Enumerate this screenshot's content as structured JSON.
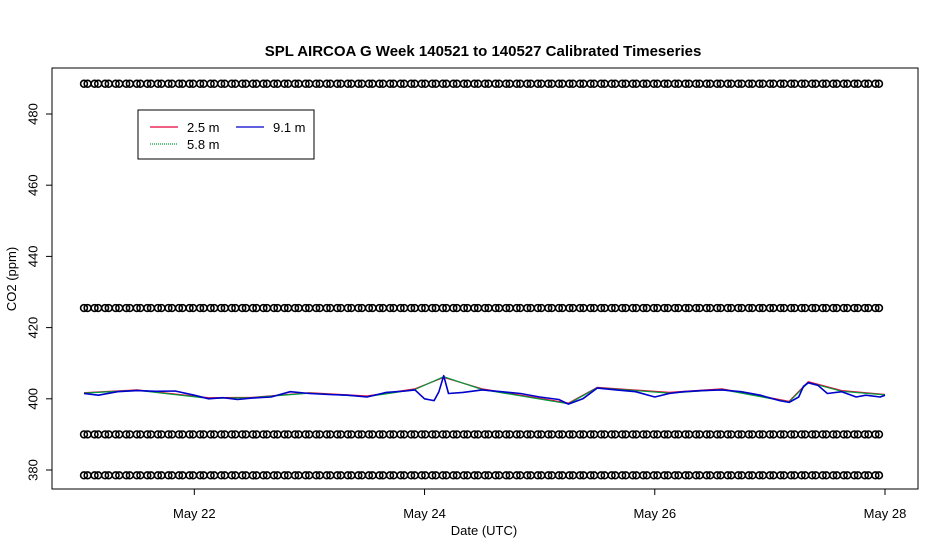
{
  "chart_data": {
    "type": "line",
    "title": "SPL AIRCOA G  Week 140521 to 140527  Calibrated Timeseries",
    "xlabel": "Date (UTC)",
    "ylabel": "CO2 (ppm)",
    "x_range": [
      "2014-05-21T01:00",
      "2014-05-28T00:00"
    ],
    "ylim": [
      375,
      490
    ],
    "x_ticks": [
      {
        "date": "2014-05-22",
        "label": "May 22"
      },
      {
        "date": "2014-05-24",
        "label": "May 24"
      },
      {
        "date": "2014-05-26",
        "label": "May 26"
      },
      {
        "date": "2014-05-28",
        "label": "May 28"
      }
    ],
    "y_ticks": [
      380,
      400,
      420,
      440,
      460,
      480
    ],
    "legend": {
      "placement": "top-left",
      "entries": [
        {
          "label": "2.5 m",
          "color": "#e8003c"
        },
        {
          "label": "5.8 m",
          "color": "#009a3a"
        },
        {
          "label": "9.1 m",
          "color": "#0000cc"
        }
      ]
    },
    "series": [
      {
        "name": "9.1 m",
        "color": "#0000cc",
        "points": [
          [
            "2014-05-21T01:00",
            401.5
          ],
          [
            "2014-05-21T04:00",
            401.0
          ],
          [
            "2014-05-21T08:00",
            402.0
          ],
          [
            "2014-05-21T12:00",
            402.3
          ],
          [
            "2014-05-21T16:00",
            402.1
          ],
          [
            "2014-05-21T20:00",
            402.2
          ],
          [
            "2014-05-22T00:00",
            401.0
          ],
          [
            "2014-05-22T03:00",
            400.0
          ],
          [
            "2014-05-22T06:00",
            400.3
          ],
          [
            "2014-05-22T09:00",
            399.8
          ],
          [
            "2014-05-22T12:00",
            400.2
          ],
          [
            "2014-05-22T16:00",
            400.5
          ],
          [
            "2014-05-22T20:00",
            402.0
          ],
          [
            "2014-05-23T00:00",
            401.5
          ],
          [
            "2014-05-23T04:00",
            401.2
          ],
          [
            "2014-05-23T08:00",
            401.0
          ],
          [
            "2014-05-23T12:00",
            400.5
          ],
          [
            "2014-05-23T16:00",
            401.8
          ],
          [
            "2014-05-23T20:00",
            402.2
          ],
          [
            "2014-05-23T22:00",
            402.5
          ],
          [
            "2014-05-24T00:00",
            400.0
          ],
          [
            "2014-05-24T02:00",
            399.5
          ],
          [
            "2014-05-24T03:00",
            402.0
          ],
          [
            "2014-05-24T04:00",
            406.5
          ],
          [
            "2014-05-24T05:00",
            401.5
          ],
          [
            "2014-05-24T08:00",
            401.8
          ],
          [
            "2014-05-24T12:00",
            402.5
          ],
          [
            "2014-05-24T16:00",
            402.0
          ],
          [
            "2014-05-24T20:00",
            401.5
          ],
          [
            "2014-05-25T00:00",
            400.5
          ],
          [
            "2014-05-25T04:00",
            399.8
          ],
          [
            "2014-05-25T06:00",
            398.5
          ],
          [
            "2014-05-25T09:00",
            400.0
          ],
          [
            "2014-05-25T12:00",
            403.0
          ],
          [
            "2014-05-25T16:00",
            402.5
          ],
          [
            "2014-05-25T20:00",
            402.0
          ],
          [
            "2014-05-26T00:00",
            400.5
          ],
          [
            "2014-05-26T03:00",
            401.5
          ],
          [
            "2014-05-26T06:00",
            402.0
          ],
          [
            "2014-05-26T10:00",
            402.3
          ],
          [
            "2014-05-26T14:00",
            402.5
          ],
          [
            "2014-05-26T18:00",
            402.0
          ],
          [
            "2014-05-26T22:00",
            401.0
          ],
          [
            "2014-05-27T02:00",
            399.5
          ],
          [
            "2014-05-27T04:00",
            399.0
          ],
          [
            "2014-05-27T06:00",
            400.5
          ],
          [
            "2014-05-27T07:00",
            403.5
          ],
          [
            "2014-05-27T08:00",
            404.5
          ],
          [
            "2014-05-27T10:00",
            403.8
          ],
          [
            "2014-05-27T12:00",
            401.5
          ],
          [
            "2014-05-27T15:00",
            402.0
          ],
          [
            "2014-05-27T18:00",
            400.5
          ],
          [
            "2014-05-27T20:00",
            401.0
          ],
          [
            "2014-05-27T23:00",
            400.5
          ],
          [
            "2014-05-28T00:00",
            401.0
          ]
        ]
      },
      {
        "name": "2.5 m",
        "color": "#e8003c",
        "points": [
          [
            "2014-05-21T01:00",
            401.7
          ],
          [
            "2014-05-21T12:00",
            402.5
          ],
          [
            "2014-05-22T03:00",
            400.3
          ],
          [
            "2014-05-22T12:00",
            400.4
          ],
          [
            "2014-05-23T00:00",
            401.7
          ],
          [
            "2014-05-23T12:00",
            400.8
          ],
          [
            "2014-05-23T22:00",
            402.8
          ],
          [
            "2014-05-24T04:00",
            406.0
          ],
          [
            "2014-05-24T12:00",
            402.8
          ],
          [
            "2014-05-25T06:00",
            398.8
          ],
          [
            "2014-05-25T12:00",
            403.2
          ],
          [
            "2014-05-26T03:00",
            401.8
          ],
          [
            "2014-05-26T14:00",
            402.8
          ],
          [
            "2014-05-27T04:00",
            399.3
          ],
          [
            "2014-05-27T08:00",
            404.8
          ],
          [
            "2014-05-27T15:00",
            402.3
          ],
          [
            "2014-05-28T00:00",
            401.2
          ]
        ]
      },
      {
        "name": "5.8 m",
        "color": "#009a3a",
        "points": [
          [
            "2014-05-21T01:00",
            401.6
          ],
          [
            "2014-05-21T12:00",
            402.4
          ],
          [
            "2014-05-22T03:00",
            400.1
          ],
          [
            "2014-05-22T12:00",
            400.3
          ],
          [
            "2014-05-23T00:00",
            401.6
          ],
          [
            "2014-05-23T12:00",
            400.6
          ],
          [
            "2014-05-23T22:00",
            402.6
          ],
          [
            "2014-05-24T04:00",
            406.2
          ],
          [
            "2014-05-24T12:00",
            402.6
          ],
          [
            "2014-05-25T06:00",
            398.6
          ],
          [
            "2014-05-25T12:00",
            403.1
          ],
          [
            "2014-05-26T03:00",
            401.6
          ],
          [
            "2014-05-26T14:00",
            402.6
          ],
          [
            "2014-05-27T04:00",
            399.1
          ],
          [
            "2014-05-27T08:00",
            404.6
          ],
          [
            "2014-05-27T15:00",
            402.1
          ],
          [
            "2014-05-28T00:00",
            401.1
          ]
        ]
      }
    ],
    "marker_rows": [
      {
        "name": "marker-row",
        "y": 488.5
      },
      {
        "name": "marker-row",
        "y": 425.5
      },
      {
        "name": "marker-row",
        "y": 390.0
      },
      {
        "name": "marker-row",
        "y": 378.5
      }
    ],
    "marker_times": {
      "start": "2014-05-21T01:00",
      "end": "2014-05-28T00:00",
      "interval_hours": 2.2
    }
  }
}
